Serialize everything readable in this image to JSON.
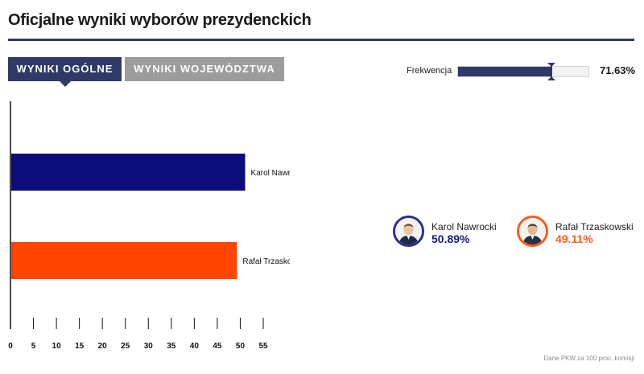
{
  "header": {
    "title": "Oficjalne wyniki wyborów prezydenckich"
  },
  "tabs": [
    {
      "label": "WYNIKI OGÓLNE",
      "active": true
    },
    {
      "label": "WYNIKI WOJEWÓDZTWA",
      "active": false
    }
  ],
  "turnout": {
    "label": "Frekwencja",
    "value": 71.63,
    "value_text": "71.63%"
  },
  "colors": {
    "nawrocki": "#0c0c7c",
    "trzaskowski": "#ff4500",
    "header_accent": "#2f3a66",
    "tab_inactive": "#9c9c9c"
  },
  "candidates": [
    {
      "name": "Karol Nawrocki",
      "percent_text": "50.89%",
      "icon": "candidate-portrait"
    },
    {
      "name": "Rafał Trzaskowski",
      "percent_text": "49.11%",
      "icon": "candidate-portrait"
    }
  ],
  "source": "Dane PKW za 100 proc. komisji",
  "chart_data": {
    "type": "bar",
    "orientation": "horizontal",
    "categories": [
      "Karol Nawrocki",
      "Rafał Trzaskowski"
    ],
    "values": [
      50.89,
      49.11
    ],
    "bar_colors": [
      "#0c0c7c",
      "#ff4500"
    ],
    "xlim": [
      0,
      55
    ],
    "x_ticks": [
      0,
      5,
      10,
      15,
      20,
      25,
      30,
      35,
      40,
      45,
      50,
      55
    ],
    "grid": false,
    "title": "",
    "xlabel": "",
    "ylabel": ""
  }
}
